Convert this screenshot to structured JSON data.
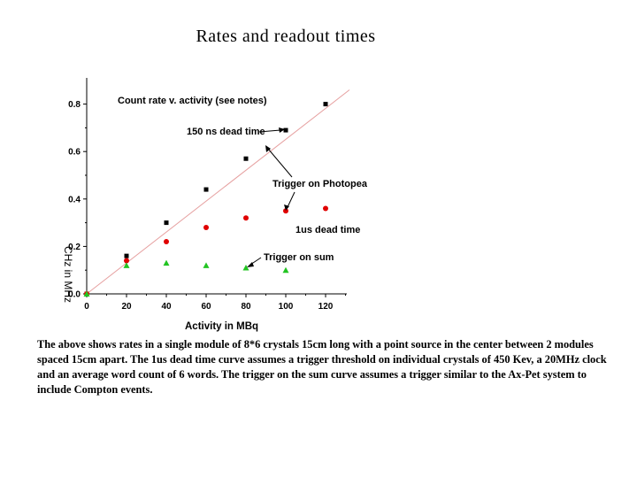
{
  "page": {
    "title": "Rates and readout times",
    "description": "The above shows rates in a single module of 8*6 crystals 15cm long with a point source in the center between 2 modules spaced 15cm apart. The 1us dead time curve assumes a trigger threshold on individual crystals of 450 Kev, a 20MHz clock and an average word count of 6 words. The trigger on the sum curve assumes a trigger similar to the Ax-Pet system to include Compton events."
  },
  "chart_data": {
    "type": "scatter",
    "title": "Count rate v. activity (see notes)",
    "xlabel": "Activity in MBq",
    "ylabel": "CHz in MHz",
    "xlim": [
      0,
      130
    ],
    "ylim": [
      0,
      0.85
    ],
    "xticks": [
      0,
      20,
      40,
      60,
      80,
      100,
      120
    ],
    "yticks": [
      0.0,
      0.2,
      0.4,
      0.6,
      0.8
    ],
    "ytick_labels": [
      "0.0",
      "0.2",
      "0.4",
      "0.6",
      "0.8"
    ],
    "series": [
      {
        "name": "150 ns dead time",
        "marker": "square",
        "color": "#000000",
        "x": [
          0,
          20,
          40,
          60,
          80,
          100,
          120
        ],
        "y": [
          0.0,
          0.16,
          0.3,
          0.44,
          0.57,
          0.69,
          0.8
        ]
      },
      {
        "name": "1us dead time",
        "marker": "circle",
        "color": "#e00000",
        "x": [
          0,
          20,
          40,
          60,
          80,
          100,
          120
        ],
        "y": [
          0.0,
          0.14,
          0.22,
          0.28,
          0.32,
          0.35,
          0.36
        ]
      },
      {
        "name": "Trigger on sum",
        "marker": "triangle",
        "color": "#22c422",
        "x": [
          0,
          20,
          40,
          60,
          80,
          100
        ],
        "y": [
          0.0,
          0.12,
          0.13,
          0.12,
          0.11,
          0.1
        ]
      }
    ],
    "reference_line": {
      "name": "linear reference",
      "color": "#e6a0a0",
      "x": [
        0,
        132
      ],
      "y": [
        0.0,
        0.86
      ]
    },
    "annotations": [
      {
        "text": "150 ns dead time"
      },
      {
        "text": "Trigger on Photopeak"
      },
      {
        "text": "1us dead time"
      },
      {
        "text": "Trigger on sum"
      }
    ]
  }
}
